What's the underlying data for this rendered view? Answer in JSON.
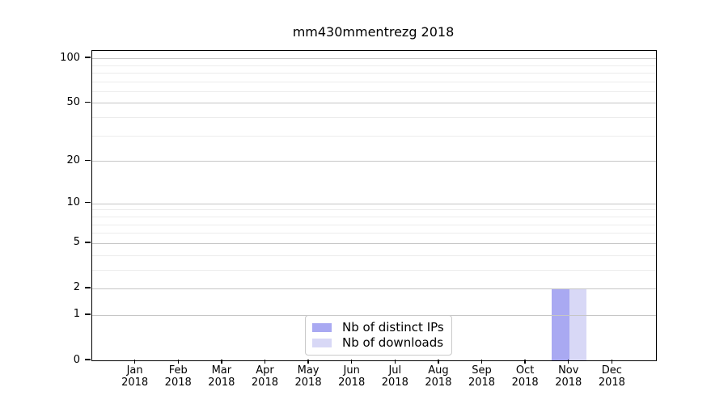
{
  "chart_data": {
    "type": "bar",
    "title": "mm430mmentrezg 2018",
    "categories": [
      "Jan",
      "Feb",
      "Mar",
      "Apr",
      "May",
      "Jun",
      "Jul",
      "Aug",
      "Sep",
      "Oct",
      "Nov",
      "Dec"
    ],
    "category_year": "2018",
    "series": [
      {
        "name": "Nb of distinct IPs",
        "color": "#a9a9f2",
        "values": [
          0,
          0,
          0,
          0,
          0,
          0,
          0,
          0,
          0,
          0,
          2,
          0
        ]
      },
      {
        "name": "Nb of downloads",
        "color": "#d8d8f6",
        "values": [
          0,
          0,
          0,
          0,
          0,
          0,
          0,
          0,
          0,
          0,
          2,
          0
        ]
      }
    ],
    "yscale": "log1p",
    "ylim": [
      0,
      112
    ],
    "yticks": [
      0,
      1,
      2,
      5,
      10,
      20,
      50,
      100
    ],
    "yticks_minor": [
      3,
      4,
      6,
      7,
      8,
      9,
      30,
      40,
      60,
      70,
      80,
      90
    ],
    "grid": "horizontal",
    "legend_position": "bottom-center"
  },
  "colors": {
    "spine": "#000000",
    "grid_major": "#c6c6c6",
    "grid_minor": "#ececec",
    "text": "#000000",
    "legend_border": "#c9c9c9",
    "legend_bg": "#ffffff",
    "background": "#ffffff"
  }
}
